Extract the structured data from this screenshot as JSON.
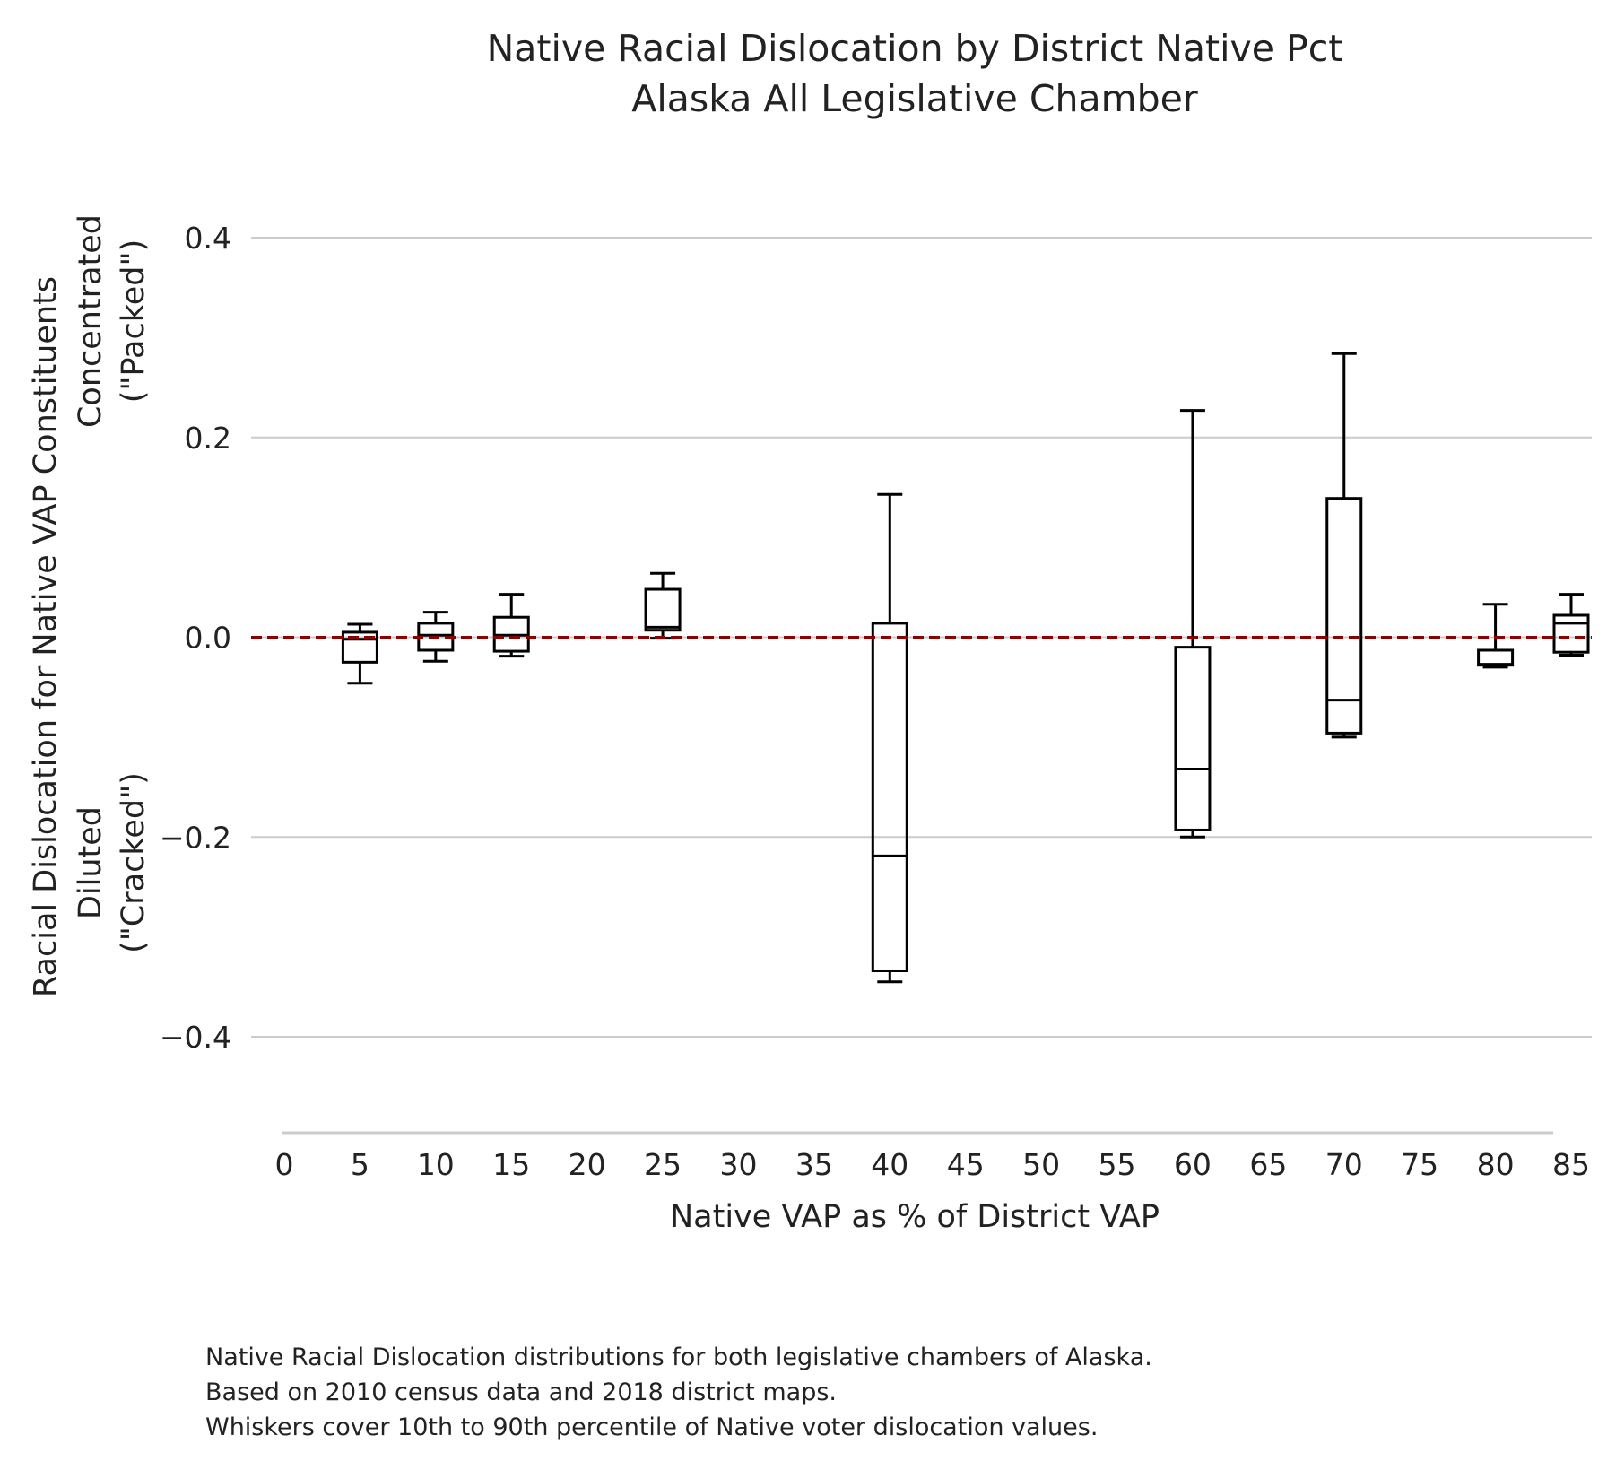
{
  "chart_data": {
    "type": "box",
    "title": "Native Racial Dislocation by District Native Pct",
    "subtitle": "Alaska All Legislative Chamber",
    "xlabel": "Native VAP as % of District VAP",
    "ylabel": [
      "Racial Dislocation for Native VAP Constituents",
      "Concentrated",
      "(\"Packed\")",
      "Diluted",
      "(\"Cracked\")"
    ],
    "xlim": [
      0,
      85
    ],
    "ylim": [
      -0.5,
      0.4
    ],
    "x_ticks": [
      0,
      5,
      10,
      15,
      20,
      25,
      30,
      35,
      40,
      45,
      50,
      55,
      60,
      65,
      70,
      75,
      80,
      85
    ],
    "x_tick_labels": [
      "0",
      "5",
      "10",
      "15",
      "20",
      "25",
      "30",
      "35",
      "40",
      "45",
      "50",
      "55",
      "60",
      "65",
      "70",
      "75",
      "80",
      "85"
    ],
    "y_ticks": [
      0.4,
      0.2,
      0.0,
      -0.2,
      -0.4
    ],
    "y_tick_labels": [
      "0.4",
      "0.2",
      "0.0",
      "−0.2",
      "−0.4"
    ],
    "grid": "horizontal",
    "reference_line": {
      "y": 0.0,
      "style": "dashed",
      "color": "#8b0000"
    },
    "box_color": "#000000",
    "boxes": [
      {
        "x": 5,
        "whisker_low": -0.046,
        "q1": -0.025,
        "median": -0.002,
        "q3": 0.005,
        "whisker_high": 0.013
      },
      {
        "x": 10,
        "whisker_low": -0.024,
        "q1": -0.013,
        "median": 0.002,
        "q3": 0.014,
        "whisker_high": 0.025
      },
      {
        "x": 15,
        "whisker_low": -0.019,
        "q1": -0.014,
        "median": 0.002,
        "q3": 0.02,
        "whisker_high": 0.043
      },
      {
        "x": 25,
        "whisker_low": -0.001,
        "q1": 0.007,
        "median": 0.01,
        "q3": 0.048,
        "whisker_high": 0.064
      },
      {
        "x": 40,
        "whisker_low": -0.345,
        "q1": -0.334,
        "median": -0.219,
        "q3": 0.014,
        "whisker_high": 0.143
      },
      {
        "x": 60,
        "whisker_low": -0.2,
        "q1": -0.193,
        "median": -0.132,
        "q3": -0.01,
        "whisker_high": 0.227
      },
      {
        "x": 70,
        "whisker_low": -0.1,
        "q1": -0.096,
        "median": -0.063,
        "q3": 0.139,
        "whisker_high": 0.284
      },
      {
        "x": 80,
        "whisker_low": -0.03,
        "q1": -0.028,
        "median": -0.027,
        "q3": -0.013,
        "whisker_high": 0.033
      },
      {
        "x": 85,
        "whisker_low": -0.018,
        "q1": -0.015,
        "median": 0.014,
        "q3": 0.022,
        "whisker_high": 0.043
      }
    ],
    "caption": [
      "Native Racial Dislocation distributions for both legislative chambers of Alaska.",
      "Based on 2010 census data and 2018 district maps.",
      "Whiskers cover 10th to 90th percentile of Native voter dislocation values."
    ]
  }
}
